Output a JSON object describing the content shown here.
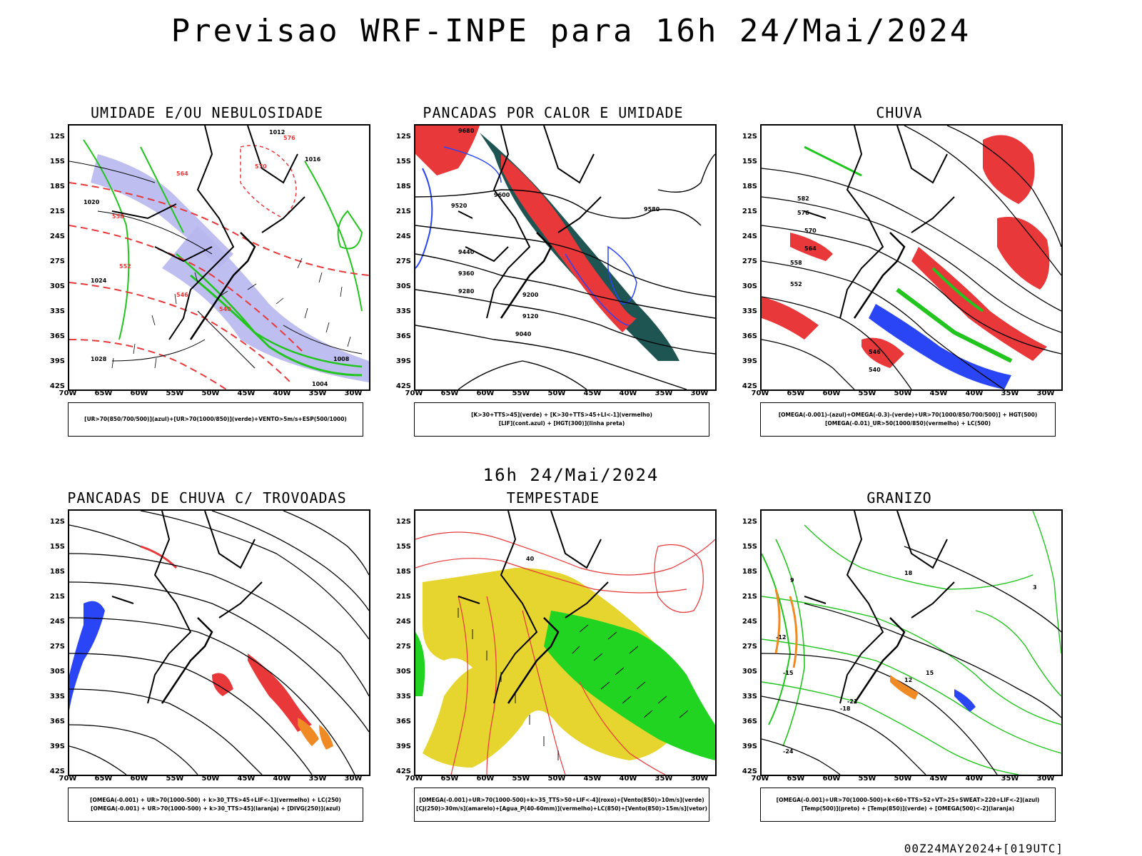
{
  "title": "Previsao WRF-INPE  para 16h 24/Mai/2024",
  "subtitle": "16h 24/Mai/2024",
  "footer": "00Z24MAY2024+[019UTC]",
  "lat_labels": [
    "12S",
    "15S",
    "18S",
    "21S",
    "24S",
    "27S",
    "30S",
    "33S",
    "36S",
    "39S",
    "42S"
  ],
  "lon_labels": [
    "70W",
    "65W",
    "60W",
    "55W",
    "50W",
    "45W",
    "40W",
    "35W",
    "30W"
  ],
  "colors": {
    "red": "#e8383a",
    "green": "#22c41e",
    "blue": "#2a45f5",
    "lavender": "#b7b7ee",
    "darkteal": "#1e5552",
    "yellow": "#e6d42f",
    "orange": "#f08a24",
    "brightgreen": "#22d422"
  },
  "panels": [
    {
      "title": "UMIDADE E/OU NEBULOSIDADE",
      "legend": [
        "[UR>70(850/700/500)](azul)+[UR>70(1000/850)](verde)+VENTO>5m/s+ESP(500/1000)"
      ],
      "map_labels": [
        "1012",
        "1016",
        "1020",
        "1024",
        "1028",
        "576",
        "570",
        "564",
        "558",
        "552",
        "546",
        "540",
        "1008",
        "1004"
      ]
    },
    {
      "title": "PANCADAS POR CALOR E UMIDADE",
      "legend": [
        "[K>30+TTS>45](verde) + [K>30+TTS>45+LI<-1](vermelho)",
        "[LIF](cont.azul) + [HGT(300)](linha preta)"
      ],
      "map_labels": [
        "9680",
        "9600",
        "9520",
        "9440",
        "9360",
        "9280",
        "9200",
        "9120",
        "9040",
        "9580"
      ]
    },
    {
      "title": "CHUVA",
      "legend": [
        "[OMEGA(-0.001)-(azul)+OMEGA(-0.3)-(verde)+UR>70(1000/850/700/500)] + HGT(500)",
        "[OMEGA(-0.01)_UR>50(1000/850)(vermelho) + LC(500)"
      ],
      "map_labels": [
        "582",
        "576",
        "570",
        "564",
        "558",
        "552",
        "546",
        "540"
      ]
    },
    {
      "title": "PANCADAS DE CHUVA C/ TROVOADAS",
      "legend": [
        "[OMEGA(-0.001) + UR>70(1000-500) + k>30_TTS>45+LIF<-1](vermelho) + LC(250)",
        "[OMEGA(-0.001) + UR>70(1000-500) + k>30_TTS>45](laranja) + [DIVG(250)](azul)"
      ],
      "map_labels": []
    },
    {
      "title": "TEMPESTADE",
      "legend": [
        "[OMEGA(-0.001)+UR>70(1000-500)+k>35_TTS>50+LIF<-4](roxo)+[Vento(850)>10m/s](verde)",
        "[CJ(250)>30m/s](amarelo)+[Agua_P(40-60mm)](vermelho)+LC(850)+[Vento(850)>15m/s](vetor)"
      ],
      "map_labels": [
        "40"
      ]
    },
    {
      "title": "GRANIZO",
      "legend": [
        "[OMEGA(-0.001)+UR>70(1000-500)+k<60+TTS>52+VT>25+SWEAT>220+LIF<-2](azul)",
        "[Temp(500)](preto) + [Temp(850)](verde) + [OMEGA(500)<-2](laranja)"
      ],
      "map_labels": [
        "-12",
        "-15",
        "-18",
        "-21",
        "-24",
        "12",
        "15",
        "18",
        "9",
        "3"
      ]
    }
  ]
}
